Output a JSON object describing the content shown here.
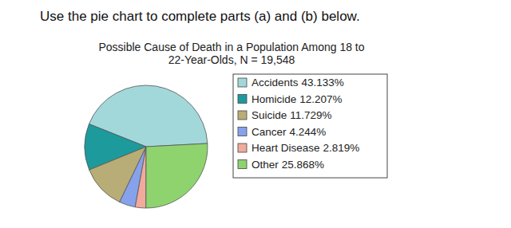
{
  "instruction": "Use the pie chart to complete parts (a) and (b) below.",
  "chart_data": {
    "type": "pie",
    "title": "Possible Cause of Death in a Population Among 18 to 22-Year-Olds, N = 19,548",
    "categories": [
      "Accidents",
      "Homicide",
      "Suicide",
      "Cancer",
      "Heart Disease",
      "Other"
    ],
    "values": [
      43.133,
      12.207,
      11.729,
      4.244,
      2.819,
      25.868
    ],
    "value_labels": [
      "43.133%",
      "12.207%",
      "11.729%",
      "4.244%",
      "2.819%",
      "25.868%"
    ],
    "colors": [
      "#a3d8da",
      "#1d9a9c",
      "#b8ad76",
      "#86a2ea",
      "#f1aa9c",
      "#8fd36e"
    ],
    "legend": "right"
  }
}
